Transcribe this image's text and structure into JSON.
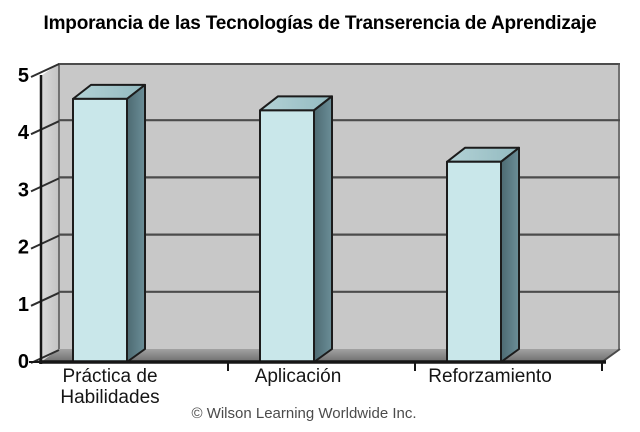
{
  "title": "Imporancia de las Tecnologías de Transerencia de Aprendizaje",
  "footer": "© Wilson Learning Worldwide Inc.",
  "chart_data": {
    "type": "bar",
    "projection": "3d",
    "title": "Imporancia de las Tecnologías de Transerencia de Aprendizaje",
    "categories": [
      "Práctica de Habilidades",
      "Aplicación",
      "Reforzamiento"
    ],
    "values": [
      4.6,
      4.4,
      3.5
    ],
    "xlabel": "",
    "ylabel": "",
    "ylim": [
      0,
      5
    ],
    "yticks": [
      0,
      1,
      2,
      3,
      4,
      5
    ],
    "grid": true,
    "legend": false,
    "annotation": "© Wilson Learning Worldwide Inc.",
    "colors": {
      "bar_front": "#c9e7ea",
      "bar_top": [
        "#b3d2d6",
        "#93bac0"
      ],
      "bar_side": [
        "#4d6a72",
        "#6b8e97"
      ],
      "bar_outline": "#1c1c1c",
      "back_wall": "#c8c8c8",
      "left_wall": [
        "#dadada",
        "#c3c3c3"
      ],
      "floor": [
        "#a2a2a2",
        "#6e6e6e"
      ],
      "gridline": "#4c4c4c",
      "wall_edge": "#555555",
      "axis": "#161616",
      "tick": "#2e2e2e",
      "title_color": "#000000",
      "category_label": "#151515",
      "footer_color": "#4b4b4b"
    }
  }
}
